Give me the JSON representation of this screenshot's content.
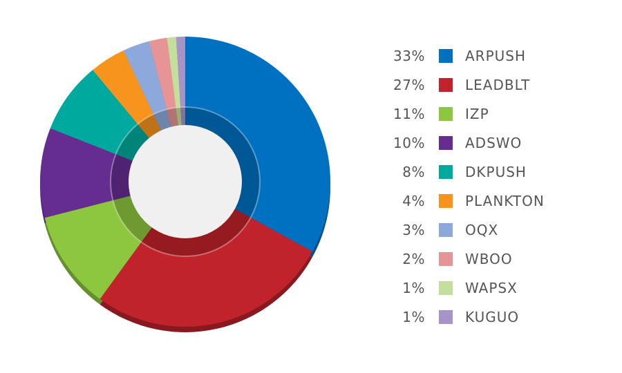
{
  "chart_data": {
    "type": "pie",
    "style": "donut",
    "legend_placement": "right",
    "slices": [
      {
        "name": "ARPUSH",
        "label": "33%",
        "value": 33,
        "color": "#0070C0"
      },
      {
        "name": "LEADBLT",
        "label": "27%",
        "value": 27,
        "color": "#C0232B"
      },
      {
        "name": "IZP",
        "label": "11%",
        "value": 11,
        "color": "#8DC63F"
      },
      {
        "name": "ADSWO",
        "label": "10%",
        "value": 10,
        "color": "#662D91"
      },
      {
        "name": "DKPUSH",
        "label": "8%",
        "value": 8,
        "color": "#00A99D"
      },
      {
        "name": "PLANKTON",
        "label": "4%",
        "value": 4,
        "color": "#F7941D"
      },
      {
        "name": "OQX",
        "label": "3%",
        "value": 3,
        "color": "#8DA9DB"
      },
      {
        "name": "WBOO",
        "label": "2%",
        "value": 2,
        "color": "#E69495"
      },
      {
        "name": "WAPSX",
        "label": "1%",
        "value": 1,
        "color": "#C4DF9B"
      },
      {
        "name": "KUGUO",
        "label": "1%",
        "value": 1,
        "color": "#A694C8"
      }
    ]
  }
}
